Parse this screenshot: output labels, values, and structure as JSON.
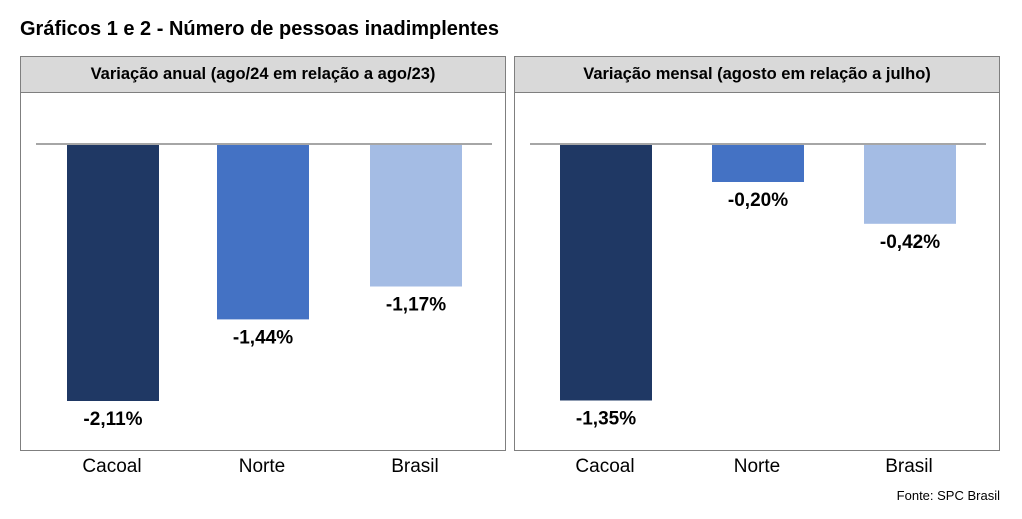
{
  "title": "Gráficos 1 e 2 - Número de pessoas inadimplentes",
  "source": "Fonte: SPC Brasil",
  "colors": {
    "cacoal": "#1f3864",
    "norte": "#4472c4",
    "brasil": "#a4bce4",
    "axis": "#a6a6a6",
    "header_bg": "#d9d9d9"
  },
  "chart_data": [
    {
      "type": "bar",
      "title": "Variação anual (ago/24 em relação a ago/23)",
      "categories": [
        "Cacoal",
        "Norte",
        "Brasil"
      ],
      "values": [
        -2.11,
        -1.44,
        -1.17
      ],
      "value_labels": [
        "-2,11%",
        "-1,44%",
        "-1,17%"
      ],
      "ylim": [
        -2.5,
        0
      ],
      "grid": false
    },
    {
      "type": "bar",
      "title": "Variação mensal (agosto em relação a julho)",
      "categories": [
        "Cacoal",
        "Norte",
        "Brasil"
      ],
      "values": [
        -1.35,
        -0.2,
        -0.42
      ],
      "value_labels": [
        "-1,35%",
        "-0,20%",
        "-0,42%"
      ],
      "ylim": [
        -1.6,
        0
      ],
      "grid": false
    }
  ]
}
